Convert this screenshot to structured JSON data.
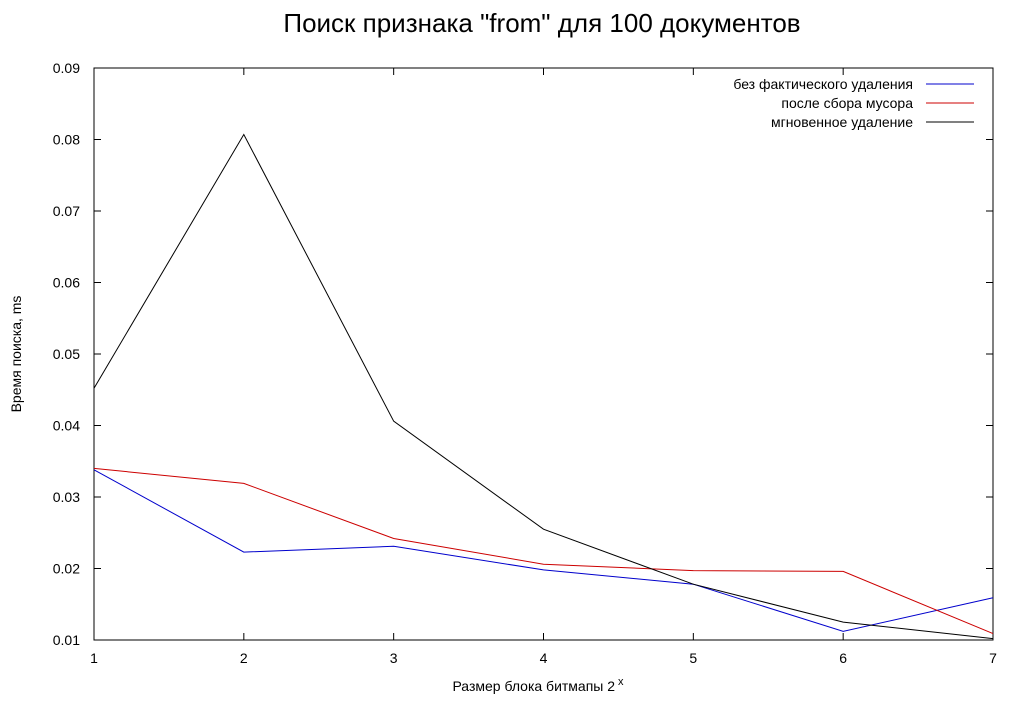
{
  "chart_data": {
    "type": "line",
    "title": "Поиск признака \"from\" для 100 документов",
    "xlabel": "Размер блока битмапы 2",
    "xlabel_sup": "x",
    "ylabel": "Время поиска, ms",
    "x": [
      1,
      2,
      3,
      4,
      5,
      6,
      7
    ],
    "xlim": [
      1,
      7
    ],
    "ylim": [
      0.01,
      0.09
    ],
    "xticks": [
      "1",
      "2",
      "3",
      "4",
      "5",
      "6",
      "7"
    ],
    "yticks": [
      "0.01",
      "0.02",
      "0.03",
      "0.04",
      "0.05",
      "0.06",
      "0.07",
      "0.08",
      "0.09"
    ],
    "grid": false,
    "legend_position": "top-right",
    "series": [
      {
        "name": "без фактического удаления",
        "color": "#0000cc",
        "values": [
          0.0338,
          0.0223,
          0.0231,
          0.0198,
          0.0178,
          0.0112,
          0.0159
        ]
      },
      {
        "name": "после сбора мусора",
        "color": "#cc0000",
        "values": [
          0.034,
          0.0319,
          0.0242,
          0.0206,
          0.0197,
          0.0196,
          0.0109
        ]
      },
      {
        "name": "мгновенное удаление",
        "color": "#000000",
        "values": [
          0.0452,
          0.0807,
          0.0406,
          0.0255,
          0.0178,
          0.0125,
          0.0102
        ]
      }
    ]
  }
}
